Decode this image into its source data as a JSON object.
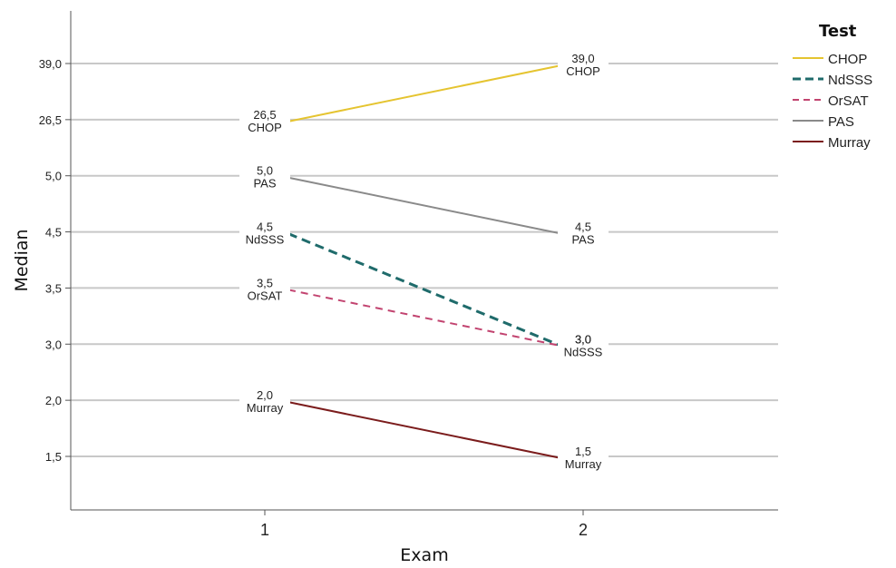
{
  "chart_data": {
    "type": "line",
    "xlabel": "Exam",
    "ylabel": "Median",
    "categories": [
      "1",
      "2"
    ],
    "y_scale": "categorical (rank-ordered labels)",
    "y_ticks": [
      "1,5",
      "2,0",
      "3,0",
      "3,5",
      "4,5",
      "5,0",
      "26,5",
      "39,0"
    ],
    "grid": "horizontal",
    "legend": {
      "title": "Test",
      "placement": "right"
    },
    "series": [
      {
        "name": "CHOP",
        "values": [
          "26,5",
          "39,0"
        ],
        "color": "#e5c430",
        "dash": "solid"
      },
      {
        "name": "NdSSS",
        "values": [
          "4,5",
          "3,0"
        ],
        "color": "#1f6b6b",
        "dash": "dashed"
      },
      {
        "name": "OrSAT",
        "values": [
          "3,5",
          "3,0"
        ],
        "color": "#c24470",
        "dash": "dashed"
      },
      {
        "name": "PAS",
        "values": [
          "5,0",
          "4,5"
        ],
        "color": "#8a8a8a",
        "dash": "solid"
      },
      {
        "name": "Murray",
        "values": [
          "2,0",
          "1,5"
        ],
        "color": "#7b1c1c",
        "dash": "solid"
      }
    ]
  }
}
